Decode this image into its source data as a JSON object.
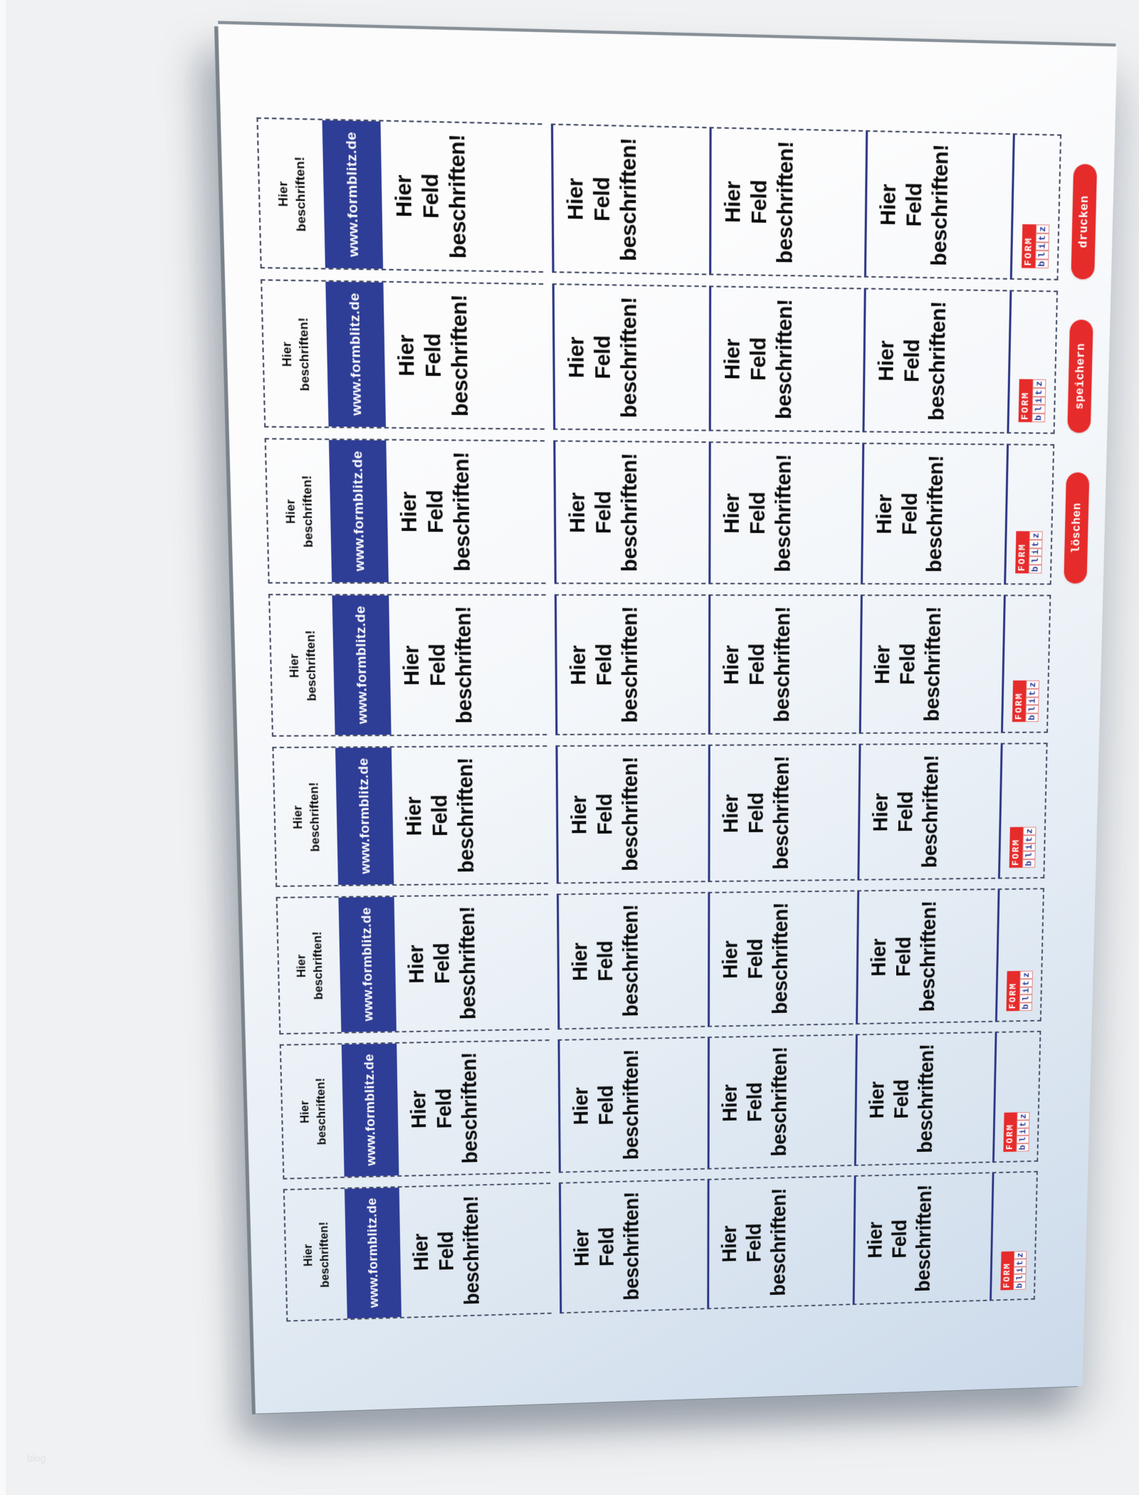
{
  "background": {
    "watermark": "blog"
  },
  "brand": {
    "red": "#e62b2b",
    "navy": "#2e3d96",
    "line_navy": "#2b3585",
    "dash_gray": "#434a63"
  },
  "sheet": {
    "row_count": 8,
    "header_label": {
      "line1": "Hier",
      "line2": "beschriften!"
    },
    "url_bar": {
      "text": "www.formblitz.de"
    },
    "field_label": {
      "line1": "Hier",
      "line2": "Feld",
      "line3": "beschriften!"
    },
    "logo": {
      "form": "FORM",
      "blitz": "blitz"
    },
    "rows": [
      {
        "button": "drucken"
      },
      {
        "button": "speichern"
      },
      {
        "button": "löschen"
      },
      {
        "button": null
      },
      {
        "button": null
      },
      {
        "button": null
      },
      {
        "button": null
      },
      {
        "button": null
      }
    ]
  }
}
